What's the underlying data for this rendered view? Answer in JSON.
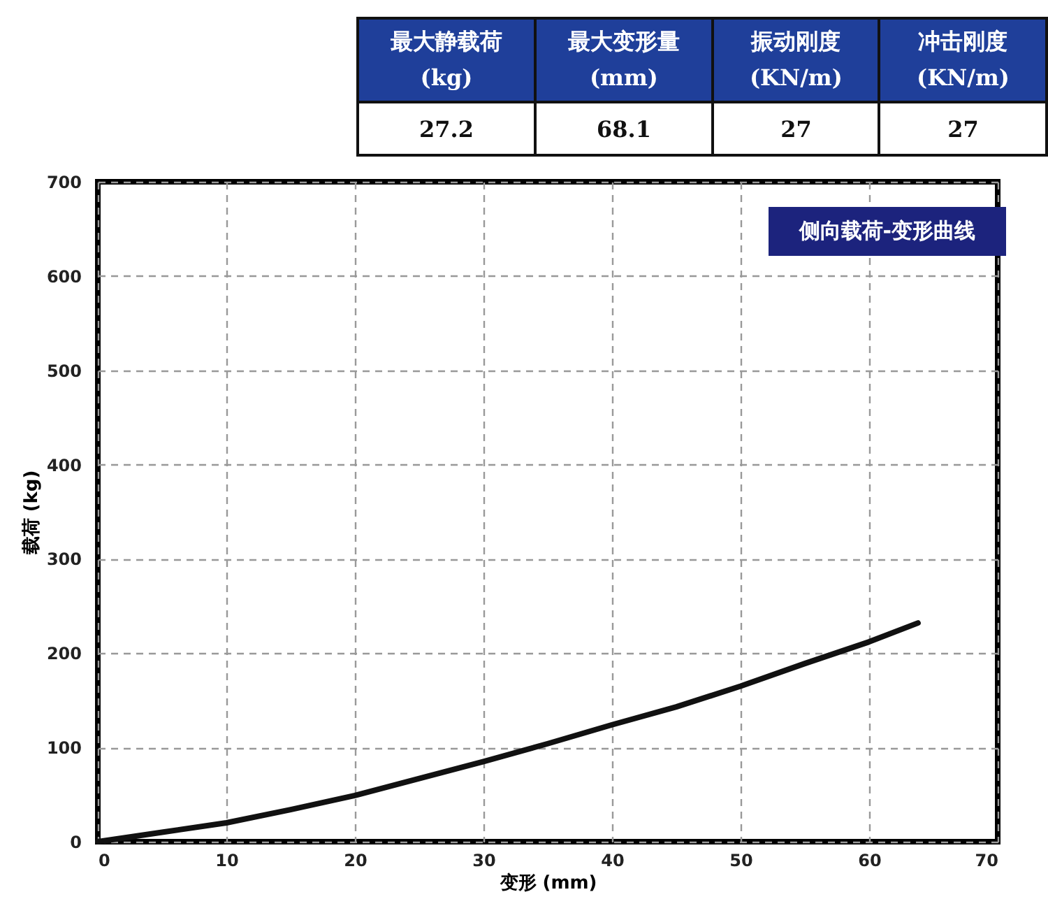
{
  "chart_data": {
    "type": "line",
    "title": "侧向载荷-变形曲线",
    "xlabel": "变形 (mm)",
    "ylabel": "载荷 (kg)",
    "annotations": [
      "最大静载荷(kg)",
      "最大变形量(mm)",
      "振动刚度(KN/m)",
      "冲击刚度(KN/m)",
      "27.2",
      "68.1",
      "27",
      "27"
    ],
    "series": [
      {
        "color": "#111111",
        "x": [
          0,
          5,
          10,
          15,
          20,
          25,
          30,
          35,
          40,
          45,
          50,
          55,
          60,
          63.8
        ],
        "values": [
          0,
          10,
          20,
          34,
          49,
          67,
          85,
          104,
          124,
          143,
          165,
          189,
          212,
          232
        ]
      }
    ],
    "xlim": [
      0,
      70
    ],
    "xticks": [
      0,
      10,
      20,
      30,
      40,
      50,
      60,
      70
    ],
    "ylim": [
      0,
      700
    ],
    "yticks": [
      0,
      100,
      200,
      300,
      400,
      500,
      600,
      700
    ],
    "grid": true,
    "marker": "none",
    "line_style": "solid"
  }
}
